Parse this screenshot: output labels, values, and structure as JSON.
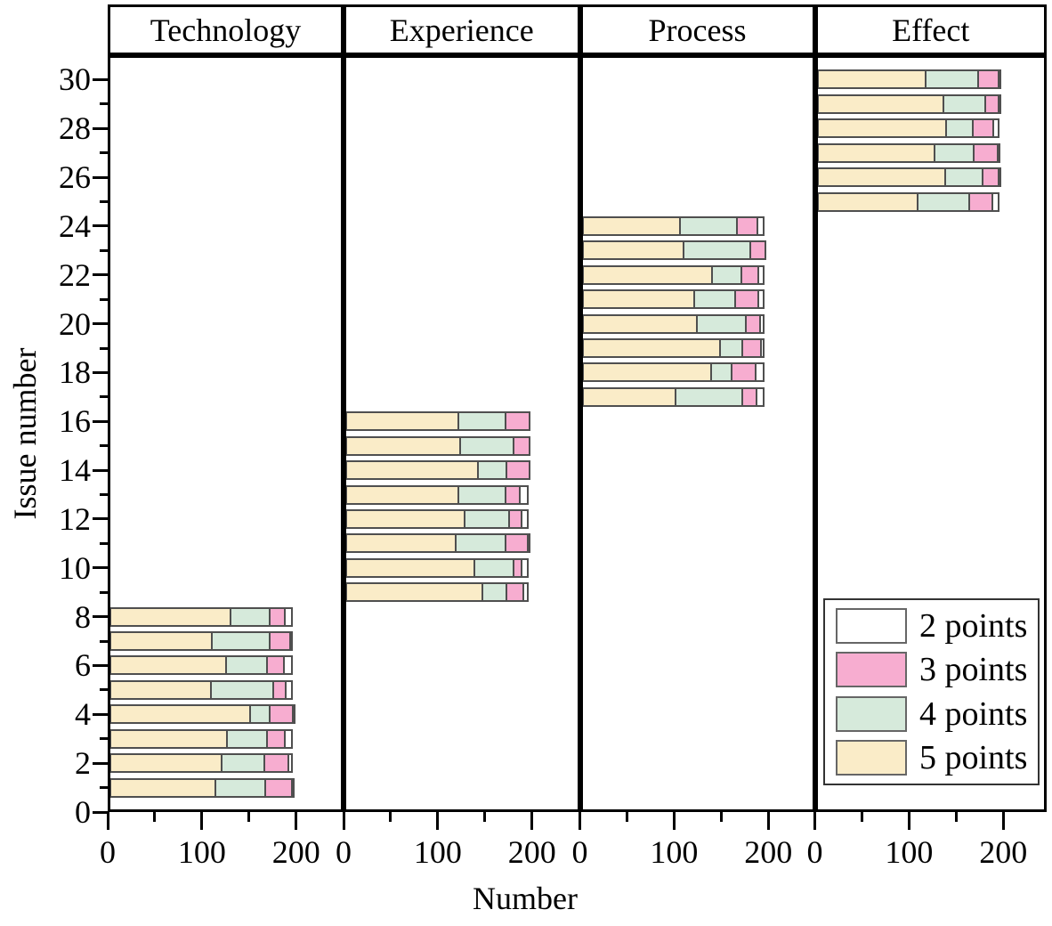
{
  "legend": {
    "items": [
      {
        "label": "2 points",
        "color": "#FFFFFF"
      },
      {
        "label": "3 points",
        "color": "#F7ADD0"
      },
      {
        "label": "4 points",
        "color": "#D6EADB"
      },
      {
        "label": "5 points",
        "color": "#FAECC8"
      }
    ]
  },
  "chart_data": {
    "type": "bar",
    "orientation": "horizontal",
    "stacked": true,
    "xlabel": "Number",
    "ylabel": "Issue number",
    "ylim": [
      0,
      31
    ],
    "y_major_ticks": [
      0,
      2,
      4,
      6,
      8,
      10,
      12,
      14,
      16,
      18,
      20,
      22,
      24,
      26,
      28,
      30
    ],
    "x_major_ticks": [
      0,
      100,
      200
    ],
    "x_minor_ticks": [
      50,
      150
    ],
    "xlim_per_panel": [
      0,
      248
    ],
    "series_keys": [
      "5 points",
      "4 points",
      "3 points",
      "2 points"
    ],
    "colors": {
      "2 points": "#FFFFFF",
      "3 points": "#F7ADD0",
      "4 points": "#D6EADB",
      "5 points": "#FAECC8"
    },
    "panels": [
      {
        "title": "Technology",
        "bars": [
          {
            "issue": 1,
            "values": [
              113,
              55,
              30,
              2
            ]
          },
          {
            "issue": 2,
            "values": [
              120,
              47,
              28,
              5
            ]
          },
          {
            "issue": 3,
            "values": [
              126,
              44,
              21,
              9
            ]
          },
          {
            "issue": 4,
            "values": [
              150,
              23,
              26,
              1
            ]
          },
          {
            "issue": 5,
            "values": [
              109,
              68,
              15,
              8
            ]
          },
          {
            "issue": 6,
            "values": [
              125,
              45,
              20,
              10
            ]
          },
          {
            "issue": 7,
            "values": [
              110,
              63,
              24,
              3
            ]
          },
          {
            "issue": 8,
            "values": [
              129,
              44,
              18,
              9
            ]
          }
        ]
      },
      {
        "title": "Experience",
        "bars": [
          {
            "issue": 9,
            "values": [
              146,
              28,
              20,
              6
            ]
          },
          {
            "issue": 10,
            "values": [
              138,
              43,
              11,
              8
            ]
          },
          {
            "issue": 11,
            "values": [
              118,
              55,
              25,
              2
            ]
          },
          {
            "issue": 12,
            "values": [
              128,
              49,
              15,
              8
            ]
          },
          {
            "issue": 13,
            "values": [
              121,
              52,
              17,
              10
            ]
          },
          {
            "issue": 14,
            "values": [
              142,
              32,
              26,
              0
            ]
          },
          {
            "issue": 15,
            "values": [
              123,
              58,
              19,
              0
            ]
          },
          {
            "issue": 16,
            "values": [
              121,
              52,
              27,
              0
            ]
          }
        ]
      },
      {
        "title": "Process",
        "bars": [
          {
            "issue": 17,
            "values": [
              101,
              72,
              17,
              10
            ]
          },
          {
            "issue": 18,
            "values": [
              138,
              24,
              27,
              11
            ]
          },
          {
            "issue": 19,
            "values": [
              148,
              25,
              22,
              5
            ]
          },
          {
            "issue": 20,
            "values": [
              123,
              54,
              17,
              6
            ]
          },
          {
            "issue": 21,
            "values": [
              120,
              46,
              26,
              8
            ]
          },
          {
            "issue": 22,
            "values": [
              139,
              33,
              20,
              8
            ]
          },
          {
            "issue": 23,
            "values": [
              109,
              73,
              18,
              0
            ]
          },
          {
            "issue": 24,
            "values": [
              105,
              63,
              23,
              9
            ]
          }
        ]
      },
      {
        "title": "Effect",
        "bars": [
          {
            "issue": 25,
            "values": [
              108,
              57,
              26,
              9
            ]
          },
          {
            "issue": 26,
            "values": [
              137,
              42,
              19,
              2
            ]
          },
          {
            "issue": 27,
            "values": [
              126,
              44,
              27,
              3
            ]
          },
          {
            "issue": 28,
            "values": [
              138,
              31,
              23,
              8
            ]
          },
          {
            "issue": 29,
            "values": [
              136,
              46,
              16,
              2
            ]
          },
          {
            "issue": 30,
            "values": [
              117,
              57,
              24,
              2
            ]
          }
        ]
      }
    ]
  }
}
